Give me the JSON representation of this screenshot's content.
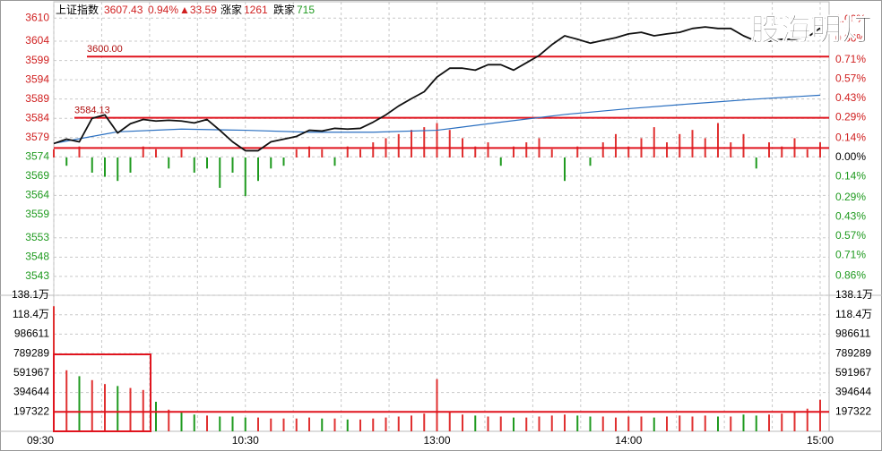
{
  "chart_data": {
    "type": "line",
    "header": {
      "name": "上证指数",
      "price": "3607.43",
      "pct": "0.94%",
      "change": "▲33.59",
      "up_label": "涨家",
      "up_count": "1261",
      "down_label": "跌家",
      "down_count": "715"
    },
    "watermark": "股海明灯",
    "xlim": [
      0,
      240
    ],
    "xticks": [
      {
        "value": 0,
        "label": "09:30"
      },
      {
        "value": 60,
        "label": "10:30"
      },
      {
        "value": 120,
        "label": "13:00"
      },
      {
        "value": 180,
        "label": "14:00"
      },
      {
        "value": 240,
        "label": "15:00"
      }
    ],
    "xminor": [
      15,
      30,
      45,
      75,
      90,
      105,
      135,
      150,
      165,
      195,
      210,
      225
    ],
    "ylim": [
      3538.1,
      3609.58
    ],
    "yticks": [
      3610,
      3604,
      3599,
      3594,
      3589,
      3584,
      3579,
      3574,
      3569,
      3564,
      3559,
      3553,
      3548,
      3543
    ],
    "y2lim": [
      -1,
      1
    ],
    "y2ticks": [
      {
        "value": 1,
        "label": "1.00%"
      },
      {
        "value": 0.86,
        "label": "0.86%"
      },
      {
        "value": 0.71,
        "label": "0.71%"
      },
      {
        "value": 0.57,
        "label": "0.57%"
      },
      {
        "value": 0.43,
        "label": "0.43%"
      },
      {
        "value": 0.29,
        "label": "0.29%"
      },
      {
        "value": 0.14,
        "label": "0.14%"
      },
      {
        "value": 0,
        "label": "0.00%"
      },
      {
        "value": -0.14,
        "label": "0.14%"
      },
      {
        "value": -0.29,
        "label": "0.29%"
      },
      {
        "value": -0.43,
        "label": "0.43%"
      },
      {
        "value": -0.57,
        "label": "0.57%"
      },
      {
        "value": -0.71,
        "label": "0.71%"
      },
      {
        "value": -0.86,
        "label": "0.86%"
      }
    ],
    "hlines": [
      {
        "value": 3600,
        "label": "3600.00"
      },
      {
        "value": 3584.13,
        "label": "3584.13"
      },
      {
        "value": 3576.3
      }
    ],
    "hline_color": "#e0141e",
    "up_color": "#e03030",
    "down_color": "#1f9a1f",
    "x": [
      0,
      4,
      8,
      12,
      16,
      20,
      24,
      28,
      32,
      36,
      40,
      44,
      48,
      52,
      56,
      60,
      64,
      68,
      72,
      76,
      80,
      84,
      88,
      92,
      96,
      100,
      104,
      108,
      112,
      116,
      120,
      124,
      128,
      132,
      136,
      140,
      144,
      148,
      152,
      156,
      160,
      164,
      168,
      172,
      176,
      180,
      184,
      188,
      192,
      196,
      200,
      204,
      208,
      212,
      216,
      220,
      224,
      228,
      232,
      236,
      240
    ],
    "price": {
      "color": "#111111",
      "values": [
        3577.45,
        3578.6,
        3577.9,
        3584.0,
        3584.9,
        3580.2,
        3582.6,
        3583.7,
        3583.3,
        3583.5,
        3583.3,
        3582.8,
        3583.7,
        3580.9,
        3577.9,
        3575.6,
        3575.6,
        3577.9,
        3578.6,
        3579.3,
        3580.9,
        3580.7,
        3581.4,
        3581.2,
        3581.4,
        3583.0,
        3584.9,
        3587.2,
        3589.1,
        3590.9,
        3594.7,
        3597.0,
        3597.0,
        3596.5,
        3597.9,
        3597.9,
        3596.5,
        3598.4,
        3600.3,
        3603.1,
        3605.4,
        3604.5,
        3603.5,
        3604.2,
        3604.9,
        3605.9,
        3606.3,
        3605.4,
        3605.9,
        3606.3,
        3607.3,
        3607.7,
        3607.3,
        3607.3,
        3605.4,
        3604.0,
        3604.0,
        3604.5,
        3604.5,
        3605.0,
        3607.4
      ]
    },
    "average": {
      "color": "#2a6fc0",
      "x": [
        0,
        20,
        40,
        60,
        80,
        100,
        120,
        140,
        160,
        180,
        200,
        220,
        240
      ],
      "values": [
        3577.5,
        3580.5,
        3581.2,
        3580.9,
        3580.4,
        3580.4,
        3580.9,
        3583.0,
        3585.0,
        3586.5,
        3587.8,
        3589.0,
        3590.0
      ]
    },
    "breadth": {
      "axis": "y2",
      "values": [
        0.06,
        -0.06,
        0.08,
        -0.11,
        -0.14,
        -0.17,
        -0.11,
        0.08,
        0.06,
        -0.08,
        0.06,
        -0.11,
        -0.08,
        -0.22,
        -0.11,
        -0.28,
        -0.17,
        -0.08,
        -0.06,
        0.06,
        0.08,
        0.06,
        -0.06,
        0.08,
        0.06,
        0.11,
        0.14,
        0.17,
        0.2,
        0.22,
        0.25,
        0.2,
        0.14,
        0.08,
        0.11,
        -0.06,
        0.08,
        0.11,
        0.14,
        0.06,
        -0.17,
        0.08,
        -0.06,
        0.11,
        0.17,
        0.08,
        0.14,
        0.22,
        0.11,
        0.17,
        0.2,
        0.14,
        0.25,
        0.11,
        0.17,
        -0.08,
        0.11,
        0.08,
        0.14,
        0.06,
        0.11
      ]
    },
    "volume": {
      "ylim": [
        0,
        1381254
      ],
      "yticks": [
        {
          "value": 1381254,
          "label": "138.1万"
        },
        {
          "value": 1183932,
          "label": "118.4万"
        },
        986611,
        789289,
        591967,
        394644,
        197322
      ],
      "hline": 197322,
      "values": [
        1270000,
        620000,
        560000,
        520000,
        480000,
        460000,
        440000,
        420000,
        300000,
        220000,
        190000,
        170000,
        160000,
        150000,
        150000,
        140000,
        140000,
        130000,
        130000,
        130000,
        140000,
        130000,
        130000,
        120000,
        120000,
        130000,
        140000,
        150000,
        160000,
        180000,
        530000,
        200000,
        170000,
        160000,
        150000,
        150000,
        140000,
        140000,
        150000,
        160000,
        170000,
        160000,
        150000,
        150000,
        140000,
        150000,
        150000,
        140000,
        150000,
        160000,
        150000,
        160000,
        150000,
        150000,
        170000,
        160000,
        170000,
        180000,
        200000,
        230000,
        320000
      ]
    }
  }
}
